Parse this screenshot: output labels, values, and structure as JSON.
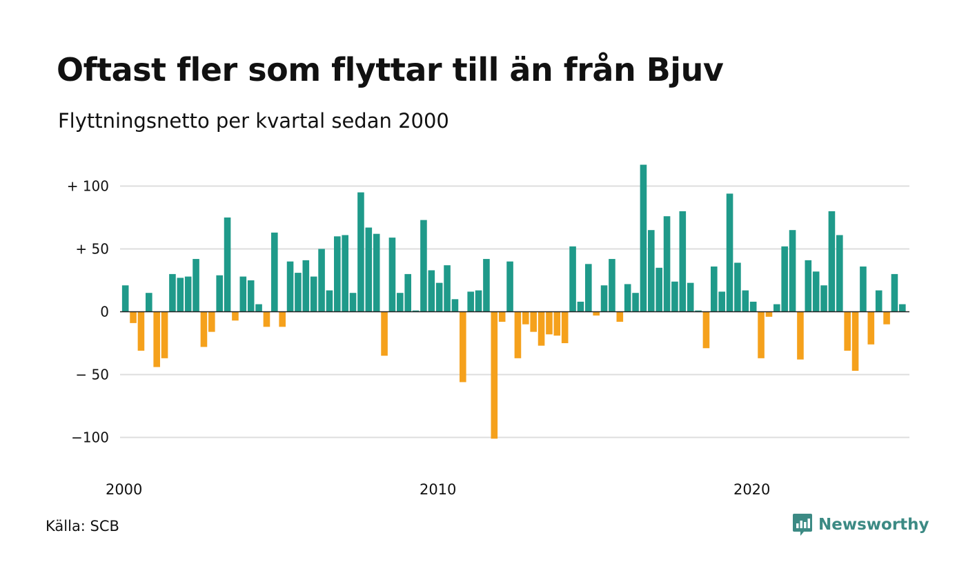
{
  "header": {
    "title": "Oftast fler som flyttar till än från Bjuv",
    "subtitle": "Flyttningsnetto per kvartal sedan 2000"
  },
  "footer": {
    "source": "Källa: SCB",
    "brand": "Newsworthy",
    "brand_icon": "chart-bubble-icon"
  },
  "colors": {
    "positive": "#1f9a8a",
    "negative": "#f5a11c",
    "grid": "#dddddd",
    "zero_line": "#222222",
    "brand": "#3c8a84"
  },
  "chart_data": {
    "type": "bar",
    "title": "Oftast fler som flyttar till än från Bjuv",
    "subtitle": "Flyttningsnetto per kvartal sedan 2000",
    "xlabel": "",
    "ylabel": "",
    "ylim": [
      -110,
      120
    ],
    "yticks": [
      100,
      50,
      0,
      -50,
      -100
    ],
    "ytick_labels": [
      "+ 100",
      "+  50",
      "0",
      "− 50",
      "−100"
    ],
    "xticks": [
      "2000",
      "2010",
      "2020"
    ],
    "grid": true,
    "legend": "none",
    "start_quarter": "2000-Q1",
    "quarterly_values": [
      21,
      -9,
      -31,
      15,
      -44,
      -37,
      30,
      27,
      28,
      42,
      -28,
      -16,
      29,
      75,
      -7,
      28,
      25,
      6,
      -12,
      63,
      -12,
      40,
      31,
      41,
      28,
      50,
      17,
      60,
      61,
      15,
      95,
      67,
      62,
      -35,
      59,
      15,
      30,
      1,
      73,
      33,
      23,
      37,
      10,
      -56,
      16,
      17,
      42,
      -101,
      -8,
      40,
      -37,
      -10,
      -16,
      -27,
      -18,
      -19,
      -25,
      52,
      8,
      38,
      -3,
      21,
      42,
      -8,
      22,
      15,
      117,
      65,
      35,
      76,
      24,
      80,
      23,
      1,
      -29,
      36,
      16,
      94,
      39,
      17,
      8,
      -37,
      -4,
      6,
      52,
      65,
      -38,
      41,
      32,
      21,
      80,
      61,
      -31,
      -47,
      36,
      -26,
      17,
      -10,
      30,
      6
    ]
  }
}
